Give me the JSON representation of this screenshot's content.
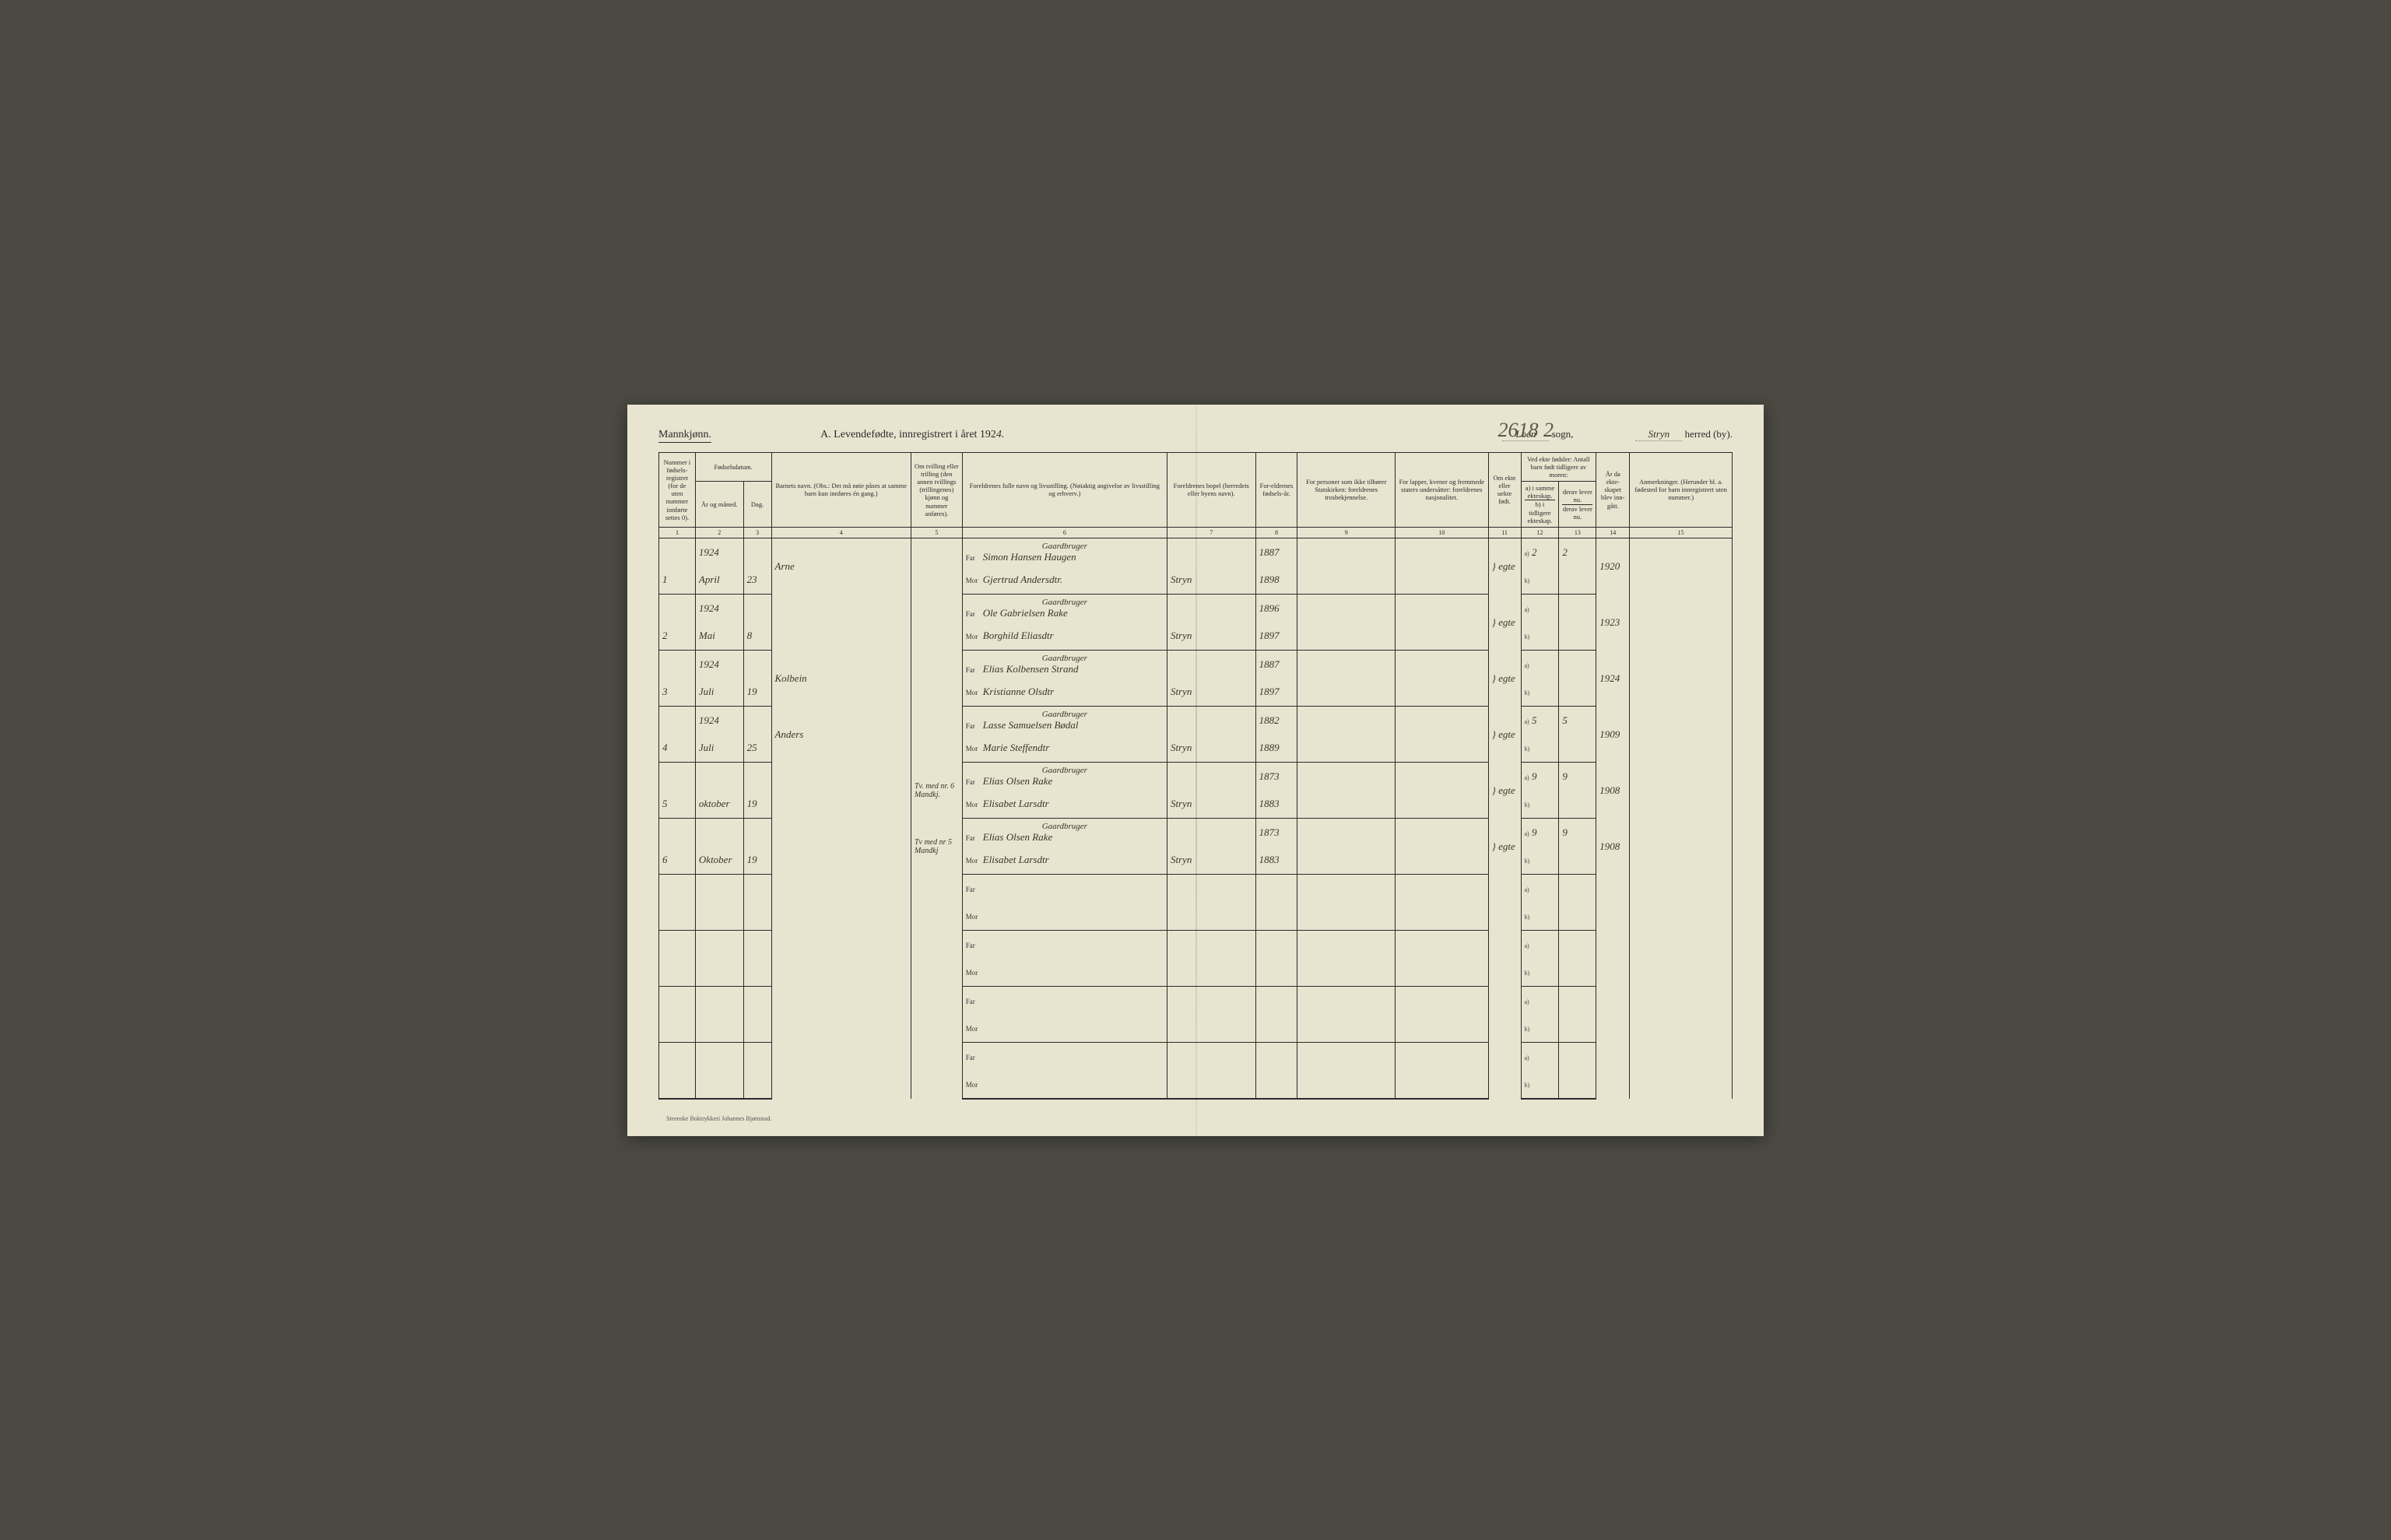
{
  "meta": {
    "gender": "Mannkjønn.",
    "title_prefix": "A.  Levendefødte, innregistrert i året 192",
    "year_suffix": "4.",
    "sogn_label": "sogn,",
    "sogn_value": "Loen",
    "herred_label": "herred (by).",
    "herred_value": "Stryn",
    "annotation_top": "2618 2",
    "printer": "Steenske Boktrykkeri Johannes Bjørnstad."
  },
  "headers": {
    "c1": "Nummer i fødsels-registret (for de uten nummer innførte settes 0).",
    "c2_group": "Fødselsdatum.",
    "c2": "År og måned.",
    "c3": "Dag.",
    "c4": "Barnets navn.\n(Obs.: Det må nøie påses at samme barn kun innføres én gang.)",
    "c5": "Om tvilling eller trilling (den annen tvillings (trillingenes) kjønn og nummer anføres).",
    "c6": "Foreldrenes fulle navn og livsstilling.\n(Nøiaktig angivelse av livsstilling og erhverv.)",
    "c7": "Foreldrenes bopel\n(herredets eller byens navn).",
    "c8": "For-eldrenes fødsels-år.",
    "c9": "For personer som ikke tilhører Statskirken:\nforeldrenes trosbekjennelse.",
    "c10": "For lapper, kvener og fremmede staters undersåtter:\nforeldrenes nasjonalitet.",
    "c11": "Om ekte eller uekte født.",
    "c12_group": "Ved ekte fødsler:\nAntall barn født tidligere av moren:",
    "c12a": "a) i samme ekteskap.",
    "c12b": "b) i tidligere ekteskap.",
    "c13a": "derav lever nu.",
    "c13b": "derav lever nu.",
    "c14": "År da ekte-skapet blev inn-gått.",
    "c15": "Anmerkninger.\n(Herunder bl. a. fødested for barn innregistrert uten nummer.)"
  },
  "colnums": [
    "1",
    "2",
    "3",
    "4",
    "5",
    "6",
    "7",
    "8",
    "9",
    "10",
    "11",
    "12",
    "13",
    "14",
    "15"
  ],
  "rows": [
    {
      "num": "1",
      "year": "1924",
      "month": "April",
      "day": "23",
      "name": "Arne",
      "twin": "",
      "occ": "Gaardbruger",
      "far": "Simon Hansen Haugen",
      "mor": "Gjertrud Andersdtr.",
      "bopel": "Stryn",
      "far_year": "1887",
      "mor_year": "1898",
      "ekte": "egte",
      "a": "2",
      "a_lev": "2",
      "marr": "1920"
    },
    {
      "num": "2",
      "year": "1924",
      "month": "Mai",
      "day": "8",
      "name": "",
      "twin": "",
      "occ": "Gaardbruger",
      "far": "Ole Gabrielsen Rake",
      "mor": "Borghild Eliasdtr",
      "bopel": "Stryn",
      "far_year": "1896",
      "mor_year": "1897",
      "ekte": "egte",
      "a": "",
      "a_lev": "",
      "marr": "1923"
    },
    {
      "num": "3",
      "year": "1924",
      "month": "Juli",
      "day": "19",
      "name": "Kolbein",
      "twin": "",
      "occ": "Gaardbruger",
      "far": "Elias Kolbensen Strand",
      "mor": "Kristianne Olsdtr",
      "bopel": "Stryn",
      "far_year": "1887",
      "mor_year": "1897",
      "ekte": "egte",
      "a": "",
      "a_lev": "",
      "marr": "1924"
    },
    {
      "num": "4",
      "year": "1924",
      "month": "Juli",
      "day": "25",
      "name": "Anders",
      "twin": "",
      "occ": "Gaardbruger",
      "far": "Lasse Samuelsen Bødal",
      "mor": "Marie Steffendtr",
      "bopel": "Stryn",
      "far_year": "1882",
      "mor_year": "1889",
      "ekte": "egte",
      "a": "5",
      "a_lev": "5",
      "marr": "1909"
    },
    {
      "num": "5",
      "year": "",
      "month": "oktober",
      "day": "19",
      "name": "",
      "twin": "Tv. med nr. 6 Mandkj.",
      "occ": "Gaardbruger",
      "far": "Elias Olsen Rake",
      "mor": "Elisabet Larsdtr",
      "bopel": "Stryn",
      "far_year": "1873",
      "mor_year": "1883",
      "ekte": "egte",
      "a": "9",
      "a_lev": "9",
      "marr": "1908"
    },
    {
      "num": "6",
      "year": "",
      "month": "Oktober",
      "day": "19",
      "name": "",
      "twin": "Tv med nr 5 Mandkj",
      "occ": "Gaardbruger",
      "far": "Elias Olsen Rake",
      "mor": "Elisabet Larsdtr",
      "bopel": "Stryn",
      "far_year": "1873",
      "mor_year": "1883",
      "ekte": "egte",
      "a": "9",
      "a_lev": "9",
      "marr": "1908"
    }
  ],
  "style": {
    "page_bg": "#e8e4d0",
    "ink": "#2a2a2a",
    "handwriting": "#3a3528",
    "pencil_circle": "#5b9bb8"
  }
}
